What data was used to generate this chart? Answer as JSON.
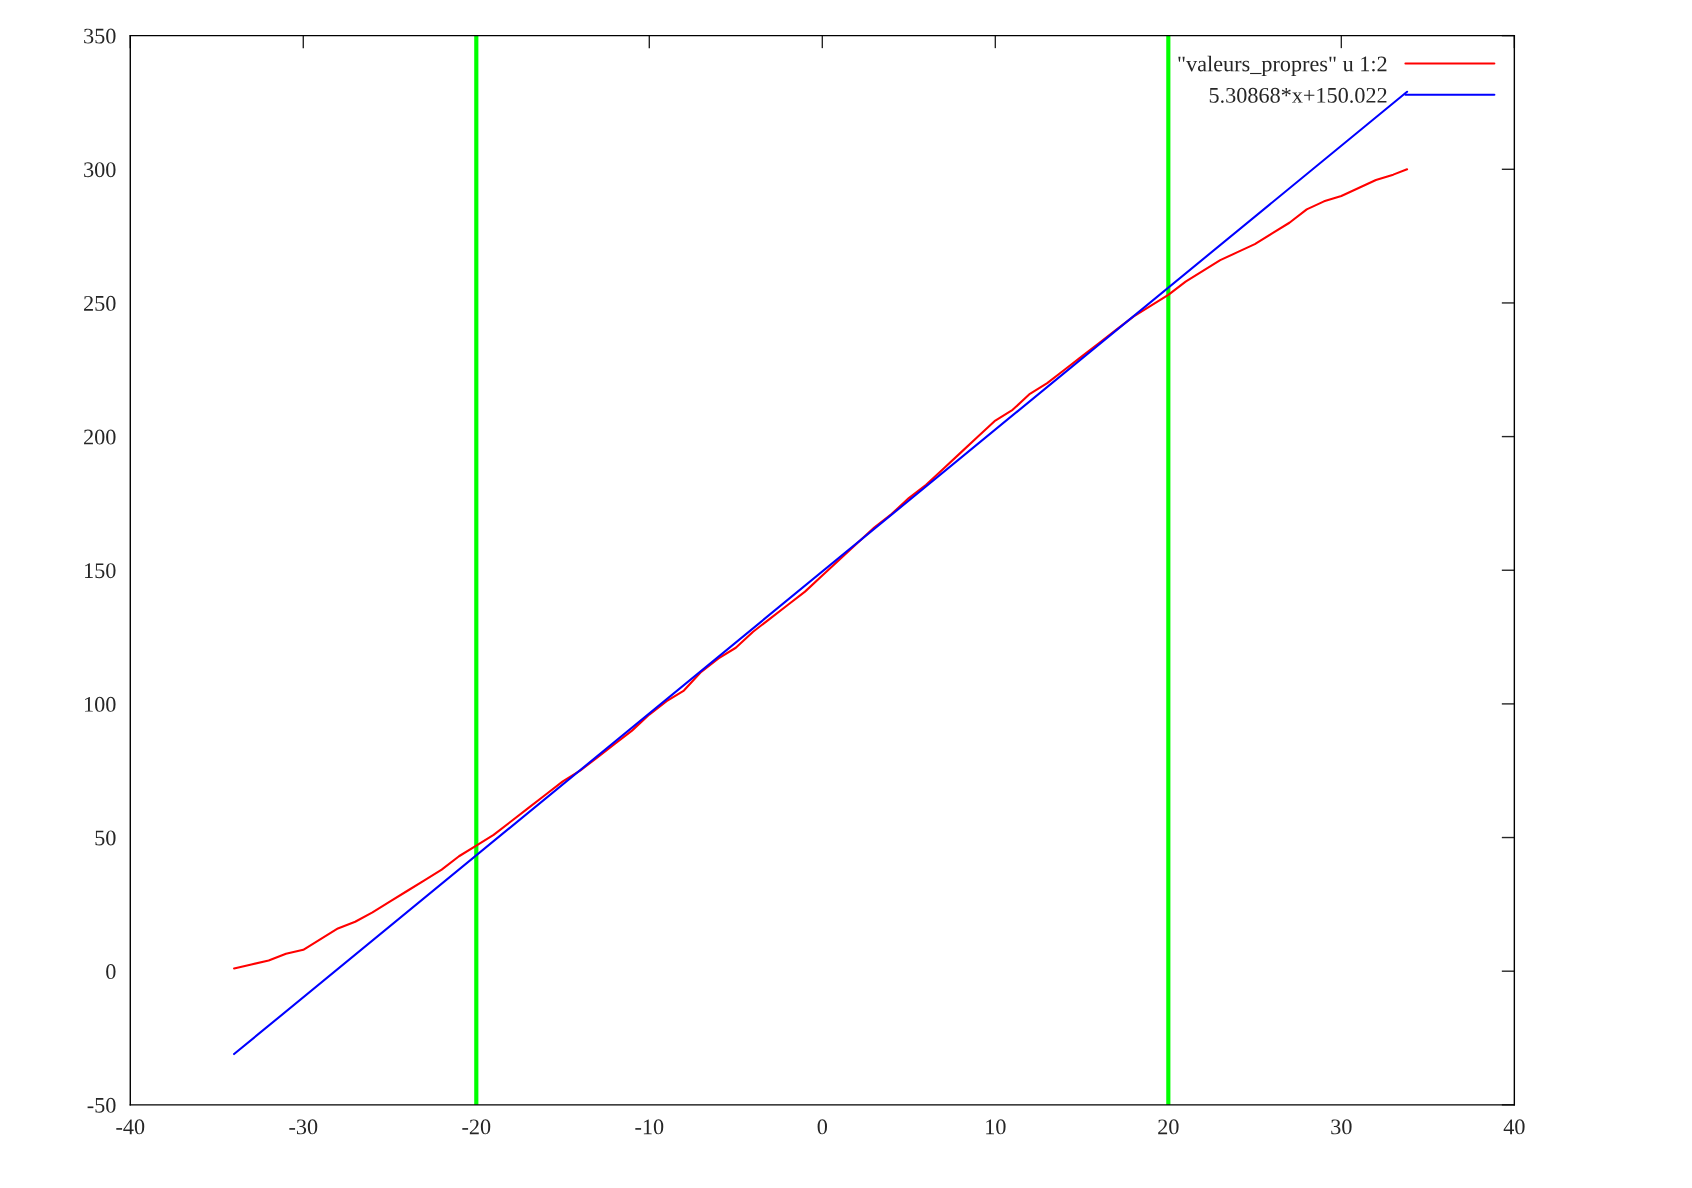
{
  "chart_data": {
    "type": "line",
    "xlim": [
      -40,
      40
    ],
    "xticks": [
      -40,
      -30,
      -20,
      -10,
      0,
      10,
      20,
      30,
      40
    ],
    "ylim": [
      -50,
      350
    ],
    "yticks": [
      -50,
      0,
      50,
      100,
      150,
      200,
      250,
      300,
      350
    ],
    "legend": "top right",
    "marker": "none",
    "line_style": "solid",
    "series": [
      {
        "name": "\"valeurs_propres\" u 1:2",
        "color": "#ff0000",
        "x": [
          -34,
          -33,
          -32,
          -31,
          -30,
          -29,
          -28,
          -27,
          -26,
          -25,
          -24,
          -23,
          -22,
          -21,
          -20,
          -19,
          -18,
          -17,
          -16,
          -15,
          -14,
          -13,
          -12,
          -11,
          -10,
          -9,
          -8,
          -7,
          -6,
          -5,
          -4,
          -3,
          -2,
          -1,
          0,
          1,
          2,
          3,
          4,
          5,
          6,
          7,
          8,
          9,
          10,
          11,
          12,
          13,
          14,
          15,
          16,
          17,
          18,
          19,
          20,
          21,
          22,
          23,
          24,
          25,
          26,
          27,
          28,
          29,
          30,
          31,
          32,
          33,
          33.8
        ],
        "values": [
          1,
          2.5,
          4,
          6.5,
          8,
          12,
          16,
          18.5,
          22,
          26,
          30,
          34,
          38,
          43,
          47,
          51,
          56,
          61,
          66,
          71,
          75,
          80,
          85,
          90,
          96,
          101,
          105,
          112,
          117,
          121,
          127,
          132,
          137,
          142,
          148,
          154,
          160,
          166,
          171,
          177,
          182,
          188,
          194,
          200,
          206,
          210,
          216,
          220,
          225,
          230,
          235,
          240,
          245,
          249,
          253,
          258,
          262,
          266,
          269,
          272,
          276,
          280,
          285,
          288,
          290,
          293,
          296,
          298,
          300
        ]
      },
      {
        "name": "5.30868*x+150.022",
        "color": "#0000ff",
        "x": [
          -34,
          33.8
        ],
        "values": [
          -31,
          329
        ]
      }
    ],
    "ref_lines": [
      {
        "axis": "x",
        "value": -20,
        "color": "#00ff00",
        "line_style": "solid"
      },
      {
        "axis": "x",
        "value": 20,
        "color": "#00ff00",
        "line_style": "solid"
      }
    ]
  }
}
